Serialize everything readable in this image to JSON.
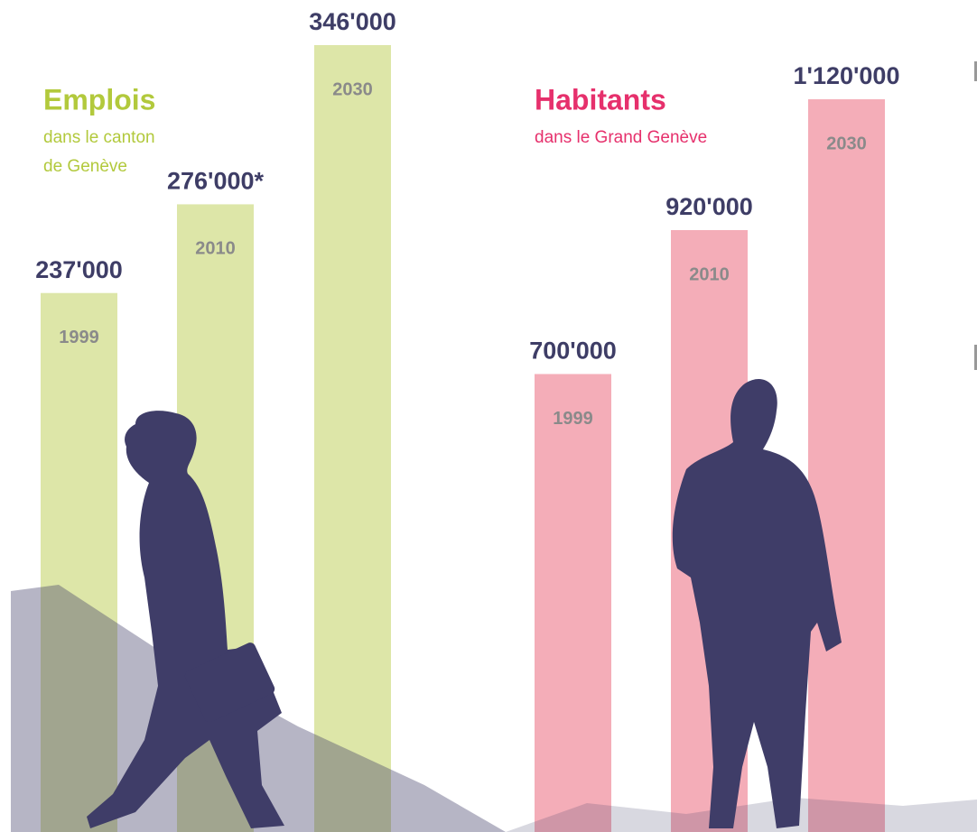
{
  "chart_data": [
    {
      "type": "bar",
      "title": "Emplois",
      "subtitle": [
        "dans le canton",
        "de Genève"
      ],
      "categories": [
        "1999",
        "2010",
        "2030"
      ],
      "values": [
        237000,
        276000,
        346000
      ],
      "value_labels": [
        "237'000",
        "276'000*",
        "346'000"
      ],
      "color": "#dde6a8",
      "title_color": "#b2c93c"
    },
    {
      "type": "bar",
      "title": "Habitants",
      "subtitle": [
        "dans le Grand Genève"
      ],
      "categories": [
        "1999",
        "2010",
        "2030"
      ],
      "values": [
        700000,
        920000,
        1120000
      ],
      "value_labels": [
        "700'000",
        "920'000",
        "1'120'000"
      ],
      "color": "#f4adb8",
      "title_color": "#e6306c"
    }
  ]
}
